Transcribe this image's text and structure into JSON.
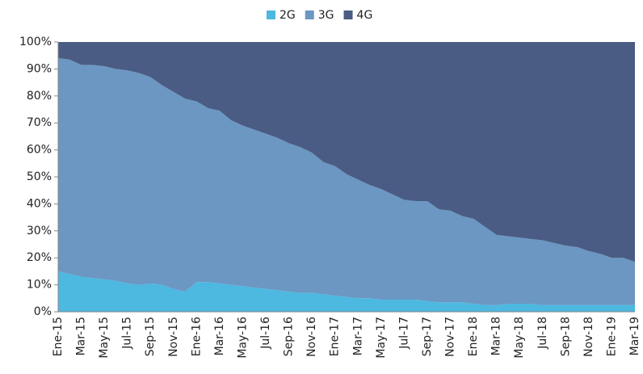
{
  "chart_data": {
    "type": "stacked_area",
    "categories": [
      "Ene-15",
      null,
      "Mar-15",
      null,
      "May-15",
      null,
      "Jul-15",
      null,
      "Sep-15",
      null,
      "Nov-15",
      null,
      "Ene-16",
      null,
      "Mar-16",
      null,
      "May-16",
      null,
      "Jul-16",
      null,
      "Sep-16",
      null,
      "Nov-16",
      null,
      "Ene-17",
      null,
      "Mar-17",
      null,
      "May-17",
      null,
      "Jul-17",
      null,
      "Sep-17",
      null,
      "Nov-17",
      null,
      "Ene-18",
      null,
      "Mar-18",
      null,
      "May-18",
      null,
      "Jul-18",
      null,
      "Sep-18",
      null,
      "Nov-18",
      null,
      "Ene-19",
      null,
      "Mar-19"
    ],
    "series": [
      {
        "name": "2G",
        "color": "#4db8e0",
        "values": [
          15,
          14,
          13,
          12.5,
          12,
          11.5,
          10.5,
          10,
          10.5,
          10,
          8.5,
          7.5,
          11,
          11,
          10.5,
          10,
          9.5,
          9,
          8.5,
          8,
          7.5,
          7,
          7,
          6.5,
          6,
          5.5,
          5,
          5,
          4.5,
          4.5,
          4.5,
          4.5,
          4,
          3.5,
          3.5,
          3.5,
          3,
          2.5,
          2.5,
          3,
          3,
          3,
          2.5,
          2.5,
          2.5,
          2.5,
          2.5,
          2.5,
          2.5,
          2.5,
          2.5
        ]
      },
      {
        "name": "3G",
        "color": "#6b97c2",
        "values": [
          79,
          79.5,
          78.5,
          79,
          79,
          78.5,
          79,
          78.5,
          76.5,
          74,
          73,
          71.5,
          67,
          64.5,
          64,
          61,
          59.5,
          58.5,
          57.5,
          56.5,
          55,
          54,
          52,
          49,
          48,
          45.5,
          44,
          42,
          41,
          39,
          37,
          36.5,
          37,
          34.5,
          34,
          32,
          31.5,
          29,
          26,
          25,
          24.5,
          24,
          24,
          23,
          22,
          21.5,
          20,
          19,
          17.5,
          17.5,
          16
        ]
      },
      {
        "name": "4G",
        "color": "#4a5c84",
        "values": [
          6,
          6.5,
          8.5,
          8.5,
          9,
          10,
          10.5,
          11.5,
          13,
          16,
          18.5,
          21,
          22,
          24.5,
          25.5,
          29,
          31,
          32.5,
          34,
          35.5,
          37.5,
          39,
          41,
          44.5,
          46,
          49,
          51,
          53,
          54.5,
          56.5,
          58.5,
          59,
          59,
          62,
          62.5,
          64.5,
          65.5,
          68.5,
          71.5,
          72,
          72.5,
          73,
          73.5,
          74.5,
          75.5,
          76,
          77.5,
          78.5,
          80,
          80,
          81.5
        ]
      }
    ],
    "ylim": [
      0,
      100
    ],
    "yticks": [
      {
        "value": 0,
        "label": "0%"
      },
      {
        "value": 10,
        "label": "10%"
      },
      {
        "value": 20,
        "label": "20%"
      },
      {
        "value": 30,
        "label": "30%"
      },
      {
        "value": 40,
        "label": "40%"
      },
      {
        "value": 50,
        "label": "50%"
      },
      {
        "value": 60,
        "label": "60%"
      },
      {
        "value": 70,
        "label": "70%"
      },
      {
        "value": 80,
        "label": "80%"
      },
      {
        "value": 90,
        "label": "90%"
      },
      {
        "value": 100,
        "label": "100%"
      }
    ],
    "legend": "top"
  }
}
